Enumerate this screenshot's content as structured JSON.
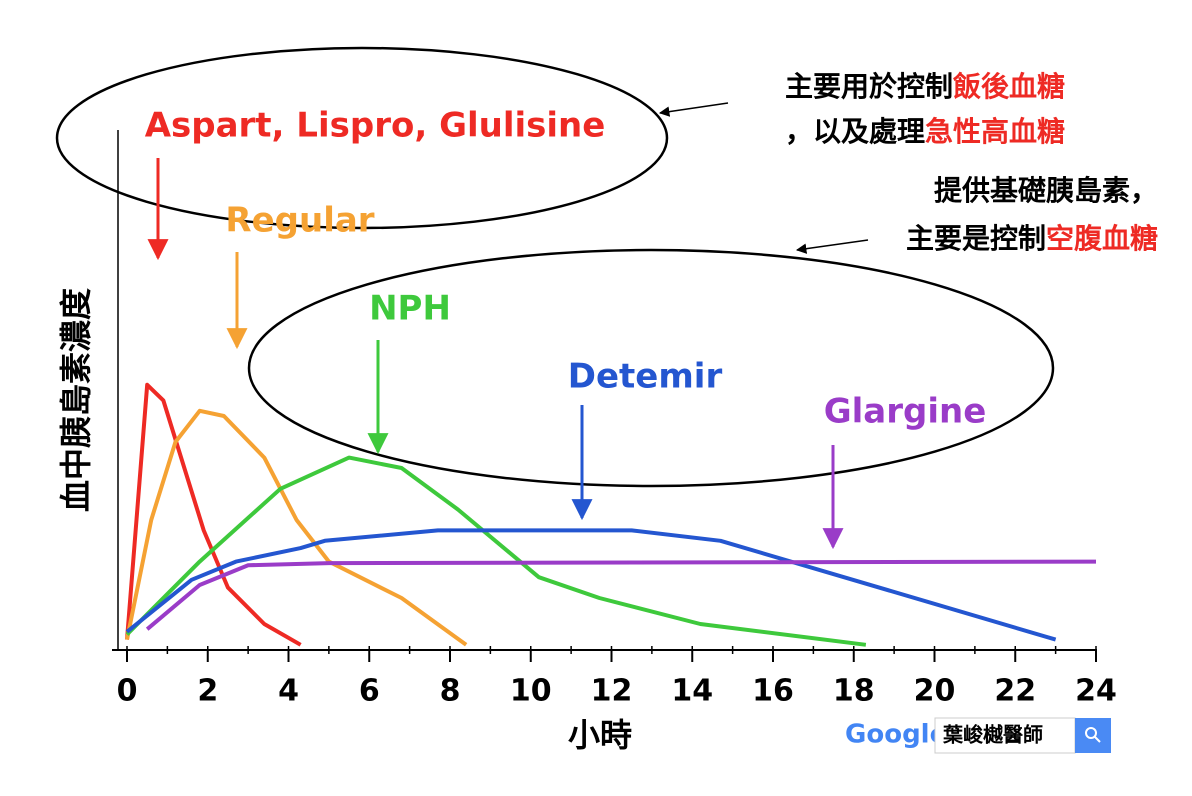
{
  "chart_data": {
    "type": "line",
    "x_label": "小時",
    "y_label": "血中胰島素濃度",
    "xlim": [
      0,
      24
    ],
    "xticks": [
      0,
      2,
      4,
      6,
      8,
      10,
      12,
      14,
      16,
      18,
      20,
      22,
      24
    ],
    "ylim": [
      0,
      100
    ],
    "series": [
      {
        "name": "Aspart, Lispro, Glulisine",
        "color": "#ee2a24",
        "x": [
          0,
          0.5,
          0.9,
          1.3,
          1.9,
          2.5,
          3.4,
          4.3
        ],
        "values": [
          2,
          51,
          48,
          38,
          23,
          12,
          5,
          1
        ]
      },
      {
        "name": "Regular",
        "color": "#f5a233",
        "x": [
          0,
          0.6,
          1.2,
          1.8,
          2.4,
          3.4,
          4.2,
          5.0,
          6.8,
          8.4
        ],
        "values": [
          2,
          25,
          40,
          46,
          45,
          37,
          25,
          17,
          10,
          1
        ]
      },
      {
        "name": "NPH",
        "color": "#3ec93c",
        "x": [
          0,
          1.8,
          3.8,
          5.5,
          6.8,
          8.2,
          10.2,
          11.7,
          14.2,
          18.3
        ],
        "values": [
          3,
          17,
          31,
          37,
          35,
          27,
          14,
          10,
          5,
          1
        ]
      },
      {
        "name": "Detemir",
        "color": "#2456d0",
        "x": [
          0,
          1.6,
          2.7,
          4.3,
          4.9,
          7.7,
          12.5,
          14.7,
          23.0
        ],
        "values": [
          3.5,
          13.5,
          17,
          19.6,
          21,
          23,
          23,
          21,
          2
        ]
      },
      {
        "name": "Glargine",
        "color": "#9a3cc8",
        "x": [
          0.5,
          1.8,
          3.0,
          5.0,
          24
        ],
        "values": [
          4,
          12.5,
          16.3,
          16.7,
          17
        ]
      }
    ],
    "annotations": [
      {
        "lines": [
          [
            {
              "text": "主要用於控制",
              "color": "#000000"
            },
            {
              "text": "飯後血糖",
              "color": "#ee2a24"
            }
          ],
          [
            {
              "text": "，以及處理",
              "color": "#000000"
            },
            {
              "text": "急性高血糖",
              "color": "#ee2a24"
            }
          ]
        ]
      },
      {
        "lines": [
          [
            {
              "text": "提供基礎胰島素，",
              "color": "#000000"
            }
          ],
          [
            {
              "text": "主要是控制",
              "color": "#000000"
            },
            {
              "text": "空腹血糖",
              "color": "#ee2a24"
            }
          ]
        ]
      }
    ],
    "watermark": {
      "logo": "Google",
      "query": "葉峻樾醫師"
    }
  }
}
